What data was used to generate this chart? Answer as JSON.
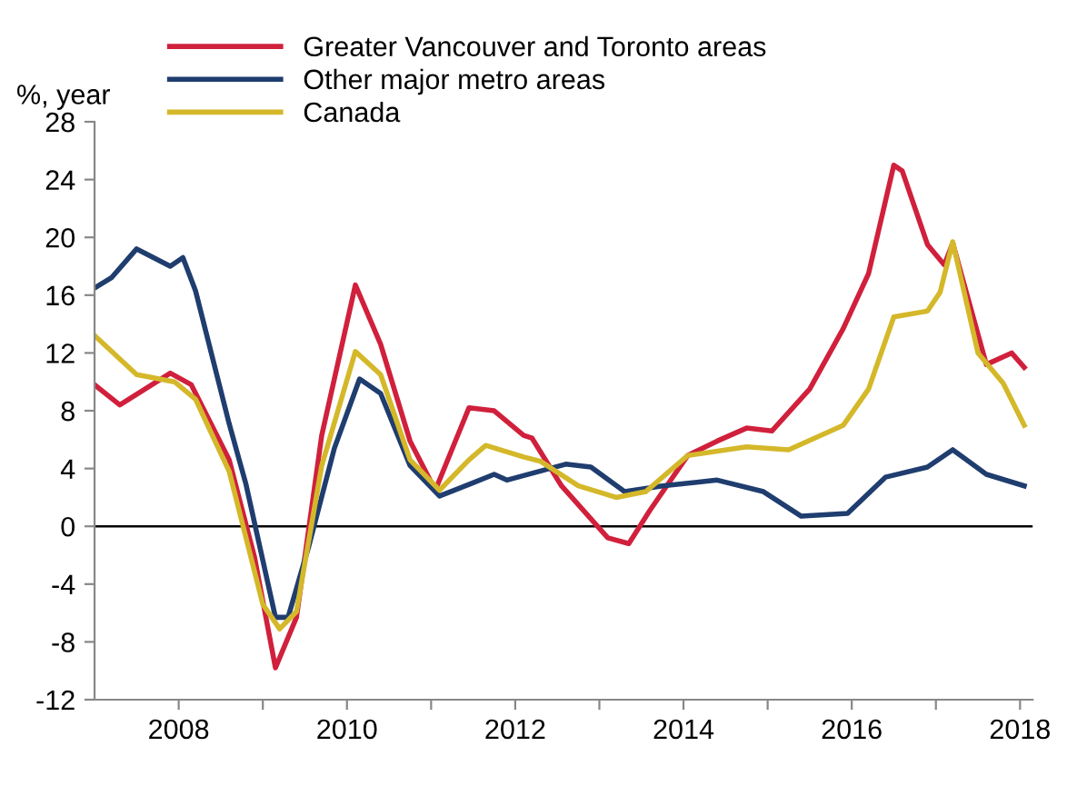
{
  "chart_data": {
    "type": "line",
    "ylabel": "%, year",
    "xlim": [
      2007,
      2018.15
    ],
    "ylim": [
      -12,
      28
    ],
    "xticks": [
      2008,
      {
        "value": 2009,
        "label": null
      },
      2010,
      {
        "value": 2011,
        "label": null
      },
      2012,
      {
        "value": 2013,
        "label": null
      },
      2014,
      {
        "value": 2015,
        "label": null
      },
      2016,
      {
        "value": 2017,
        "label": null
      },
      2018
    ],
    "yticks": [
      -12,
      -8,
      -4,
      0,
      4,
      8,
      12,
      16,
      20,
      24,
      28
    ],
    "grid": false,
    "legend": "top",
    "line_style": "solid",
    "marker": "none",
    "ref_lines": [
      {
        "axis": "y",
        "value": 0,
        "color": "#000000"
      }
    ],
    "series": [
      {
        "name": "Greater Vancouver and Toronto areas",
        "color": "#d0203c",
        "x": [
          2007,
          2007.3,
          2007.9,
          2008.15,
          2008.6,
          2008.9,
          2009.15,
          2009.4,
          2009.7,
          2010.1,
          2010.4,
          2010.75,
          2011.05,
          2011.45,
          2011.75,
          2012.1,
          2012.2,
          2012.55,
          2013.1,
          2013.35,
          2013.6,
          2014.05,
          2014.4,
          2014.75,
          2015.05,
          2015.5,
          2015.9,
          2016.2,
          2016.5,
          2016.6,
          2016.9,
          2017.1,
          2017.2,
          2017.6,
          2017.9,
          2018.05
        ],
        "values": [
          9.8,
          8.4,
          10.6,
          9.8,
          4.6,
          -2.1,
          -9.8,
          -6.3,
          6.3,
          16.7,
          12.6,
          5.9,
          2.5,
          8.2,
          8,
          6.3,
          6.1,
          2.8,
          -0.8,
          -1.2,
          1.1,
          4.9,
          5.9,
          6.8,
          6.6,
          9.5,
          13.7,
          17.5,
          25,
          24.6,
          19.5,
          18.1,
          19.6,
          11.2,
          12,
          11
        ]
      },
      {
        "name": "Other major metro areas",
        "color": "#1f3d6e",
        "x": [
          2007,
          2007.2,
          2007.5,
          2007.9,
          2008.05,
          2008.2,
          2008.6,
          2008.8,
          2009.15,
          2009.3,
          2009.55,
          2009.85,
          2010.15,
          2010.4,
          2010.75,
          2011.1,
          2011.45,
          2011.75,
          2011.9,
          2012.6,
          2012.9,
          2013.3,
          2013.75,
          2014.4,
          2014.95,
          2015.4,
          2015.95,
          2016.4,
          2016.9,
          2017.2,
          2017.6,
          2018.05
        ],
        "values": [
          16.5,
          17.2,
          19.2,
          18,
          18.6,
          16.3,
          7.1,
          2.9,
          -6.3,
          -6.3,
          -1.3,
          5.4,
          10.2,
          9.2,
          4.2,
          2.1,
          2.9,
          3.6,
          3.2,
          4.3,
          4.1,
          2.4,
          2.8,
          3.2,
          2.4,
          0.7,
          0.9,
          3.4,
          4.1,
          5.3,
          3.6,
          2.8
        ]
      },
      {
        "name": "Canada",
        "color": "#d4b82a",
        "x": [
          2007,
          2007.5,
          2007.95,
          2008.2,
          2008.6,
          2009,
          2009.2,
          2009.4,
          2009.7,
          2010.1,
          2010.4,
          2010.75,
          2011.1,
          2011.45,
          2011.65,
          2012.1,
          2012.3,
          2012.75,
          2013.2,
          2013.55,
          2014.05,
          2014.75,
          2015.25,
          2015.9,
          2016.2,
          2016.5,
          2016.9,
          2017.05,
          2017.2,
          2017.5,
          2017.8,
          2018.05
        ],
        "values": [
          13.2,
          10.5,
          10,
          8.8,
          3.8,
          -5.4,
          -7.1,
          -5.9,
          4.2,
          12.1,
          10.5,
          4.6,
          2.5,
          4.6,
          5.6,
          4.8,
          4.5,
          2.8,
          2.0,
          2.4,
          4.9,
          5.5,
          5.3,
          7.0,
          9.5,
          14.5,
          14.9,
          16.2,
          19.7,
          12,
          9.9,
          7
        ]
      }
    ]
  }
}
